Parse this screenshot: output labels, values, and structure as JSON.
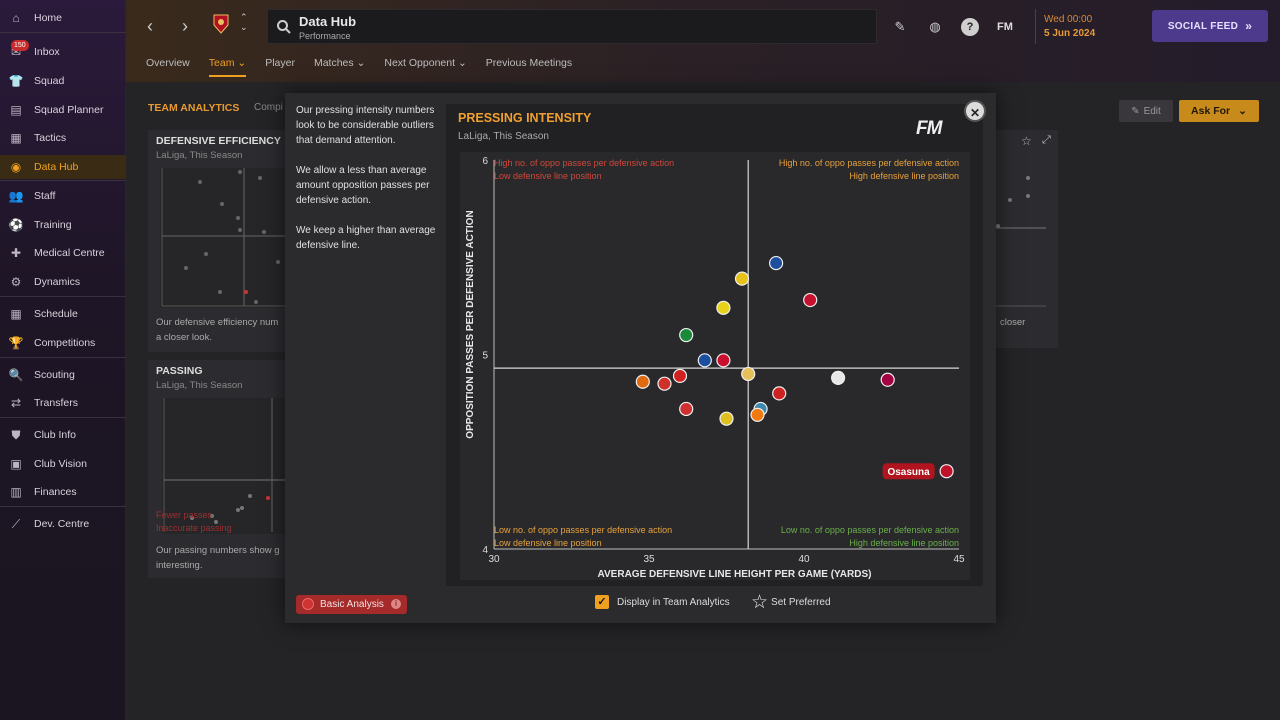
{
  "sidebar": {
    "items": [
      {
        "label": "Home",
        "icon": "home-icon"
      },
      {
        "label": "Inbox",
        "icon": "inbox-icon",
        "badge": "150"
      },
      {
        "label": "Squad",
        "icon": "squad-icon"
      },
      {
        "label": "Squad Planner",
        "icon": "squad-planner-icon"
      },
      {
        "label": "Tactics",
        "icon": "tactics-icon"
      },
      {
        "label": "Data Hub",
        "icon": "data-hub-icon",
        "active": true
      },
      {
        "label": "Staff",
        "icon": "staff-icon"
      },
      {
        "label": "Training",
        "icon": "training-icon"
      },
      {
        "label": "Medical Centre",
        "icon": "medical-icon"
      },
      {
        "label": "Dynamics",
        "icon": "dynamics-icon"
      },
      {
        "label": "Schedule",
        "icon": "schedule-icon"
      },
      {
        "label": "Competitions",
        "icon": "trophy-icon"
      },
      {
        "label": "Scouting",
        "icon": "scouting-icon"
      },
      {
        "label": "Transfers",
        "icon": "transfers-icon"
      },
      {
        "label": "Club Info",
        "icon": "shield-icon"
      },
      {
        "label": "Club Vision",
        "icon": "vision-icon"
      },
      {
        "label": "Finances",
        "icon": "finances-icon"
      },
      {
        "label": "Dev. Centre",
        "icon": "dev-centre-icon"
      }
    ]
  },
  "header": {
    "title": "Data Hub",
    "subtitle": "Performance",
    "date_line1": "Wed 00:00",
    "date_line2": "5 Jun 2024",
    "fm_label": "FM",
    "help_label": "?",
    "social_feed": "SOCIAL FEED",
    "tabs": [
      "Overview",
      "Team",
      "Player",
      "Matches",
      "Next Opponent",
      "Previous Meetings"
    ]
  },
  "analytics": {
    "section_label": "TEAM ANALYTICS",
    "compi_label": "Compi",
    "edit_label": "Edit",
    "ask_for_label": "Ask For",
    "cards": {
      "defensive": {
        "title": "DEFENSIVE EFFICIENCY",
        "subtitle": "LaLiga, This Season",
        "text1": "Our defensive efficiency num",
        "text2": "a closer look.",
        "right_text": "closer"
      },
      "passing": {
        "title": "PASSING",
        "subtitle": "LaLiga, This Season",
        "text1": "Our passing numbers show g",
        "text2": "interesting.",
        "red1": "Fewer passes",
        "red2": "Inaccurate passing"
      }
    }
  },
  "modal": {
    "paragraphs": [
      "Our pressing intensity numbers look to be considerable outliers that demand attention.",
      "We allow a less than average amount opposition passes per defensive action.",
      "We keep a higher than average defensive line."
    ],
    "basic_analysis": "Basic Analysis",
    "display_label": "Display in Team Analytics",
    "display_checked": true,
    "set_preferred": "Set Preferred",
    "fm_logo": "FM"
  },
  "chart_data": {
    "type": "scatter",
    "title": "PRESSING INTENSITY",
    "subtitle": "LaLiga, This Season",
    "xlabel": "AVERAGE DEFENSIVE LINE HEIGHT PER GAME (YARDS)",
    "ylabel": "OPPOSITION PASSES PER DEFENSIVE ACTION",
    "xlim": [
      30,
      45
    ],
    "ylim": [
      4,
      6
    ],
    "xticks": [
      30,
      35,
      40,
      45
    ],
    "yticks": [
      4,
      5,
      6
    ],
    "x_mean": 38.2,
    "y_mean": 4.93,
    "quadrants": {
      "top_left": [
        "High no. of oppo passes per defensive action",
        "Low defensive line position"
      ],
      "top_right": [
        "High no. of oppo passes per defensive action",
        "High defensive line position"
      ],
      "bottom_left": [
        "Low no. of oppo passes per defensive action",
        "Low defensive line position"
      ],
      "bottom_right": [
        "Low no. of oppo passes per defensive action",
        "High defensive line position"
      ]
    },
    "highlight_label": "Osasuna",
    "points": [
      {
        "x": 39.1,
        "y": 5.47,
        "color": "#1d4f9e"
      },
      {
        "x": 38.0,
        "y": 5.39,
        "color": "#e8c11a"
      },
      {
        "x": 40.2,
        "y": 5.28,
        "color": "#c8102e"
      },
      {
        "x": 37.4,
        "y": 5.24,
        "color": "#e8d21a"
      },
      {
        "x": 36.2,
        "y": 5.1,
        "color": "#1a8a3a"
      },
      {
        "x": 36.8,
        "y": 4.97,
        "color": "#1b4fa0"
      },
      {
        "x": 37.4,
        "y": 4.97,
        "color": "#c8102e"
      },
      {
        "x": 38.2,
        "y": 4.9,
        "color": "#e6c15a"
      },
      {
        "x": 41.1,
        "y": 4.88,
        "color": "#e8e8e8"
      },
      {
        "x": 42.7,
        "y": 4.87,
        "color": "#a50044"
      },
      {
        "x": 34.8,
        "y": 4.86,
        "color": "#e06a10"
      },
      {
        "x": 35.5,
        "y": 4.85,
        "color": "#d0302a"
      },
      {
        "x": 36.0,
        "y": 4.89,
        "color": "#d02020"
      },
      {
        "x": 39.2,
        "y": 4.8,
        "color": "#cc2222"
      },
      {
        "x": 36.2,
        "y": 4.72,
        "color": "#d03030"
      },
      {
        "x": 38.6,
        "y": 4.72,
        "color": "#3a8ab0"
      },
      {
        "x": 37.5,
        "y": 4.67,
        "color": "#e0c020"
      },
      {
        "x": 38.5,
        "y": 4.69,
        "color": "#f07a10"
      },
      {
        "x": 44.6,
        "y": 4.4,
        "color": "#c0102a",
        "highlight": true
      }
    ]
  }
}
